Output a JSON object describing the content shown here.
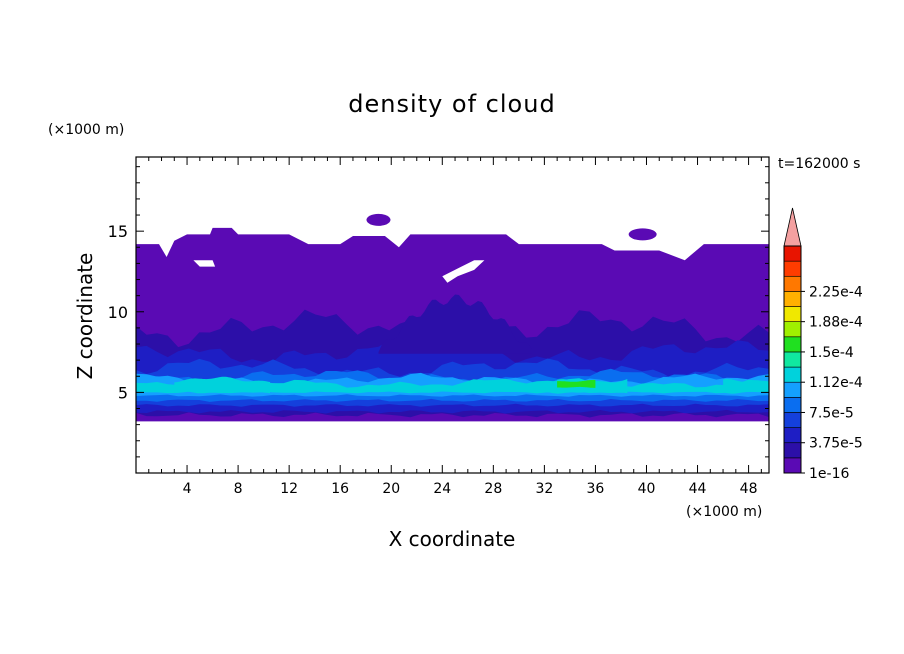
{
  "chart_data": {
    "type": "heatmap",
    "title": "density of cloud",
    "xlabel": "X coordinate",
    "ylabel": "Z coordinate",
    "x_unit": "(×1000 m)",
    "y_unit": "(×1000 m)",
    "time_label": "t=162000 s",
    "xlim": [
      0,
      49.6
    ],
    "ylim": [
      0,
      19.6
    ],
    "x_ticks": [
      4,
      8,
      12,
      16,
      20,
      24,
      28,
      32,
      36,
      40,
      44,
      48
    ],
    "y_ticks": [
      5,
      10,
      15
    ],
    "grid": false,
    "colorbar": {
      "levels": [
        "1e-16",
        "1.875e-5",
        "3.75e-5",
        "5.625e-5",
        "7.5e-5",
        "9.375e-5",
        "1.12e-4",
        "1.31e-4",
        "1.5e-4",
        "1.69e-4",
        "1.88e-4",
        "2.06e-4",
        "2.25e-4",
        "2.44e-4"
      ],
      "labels": [
        "1e-16",
        "3.75e-5",
        "7.5e-5",
        "1.12e-4",
        "1.5e-4",
        "1.88e-4",
        "2.25e-4"
      ],
      "colors": [
        "#5a0ab4",
        "#2c0fa8",
        "#1e1ec4",
        "#1440dc",
        "#0a6ef0",
        "#14a0ff",
        "#00d2dc",
        "#10e8a0",
        "#20e020",
        "#a0f000",
        "#f0e800",
        "#ffb000",
        "#ff7800",
        "#ff3c00",
        "#e81400"
      ],
      "extend_top_color": "#f4a0a0"
    },
    "layers": [
      {
        "level": 0,
        "z": [
          3.2,
          14.2
        ],
        "description_level": "1e-16"
      },
      {
        "level": 1,
        "z": [
          3.6,
          9.0
        ]
      },
      {
        "level": 2,
        "z": [
          3.8,
          7.5
        ]
      },
      {
        "level": 3,
        "z": [
          4.2,
          6.5
        ]
      },
      {
        "level": 4,
        "z": [
          4.5,
          6.0
        ]
      },
      {
        "level": 5,
        "z": [
          4.8,
          5.8
        ]
      },
      {
        "level": 6,
        "z": [
          5.0,
          5.6
        ]
      },
      {
        "level": 7,
        "z": [
          5.3,
          5.6
        ],
        "x": [
          33,
          36
        ]
      }
    ]
  }
}
